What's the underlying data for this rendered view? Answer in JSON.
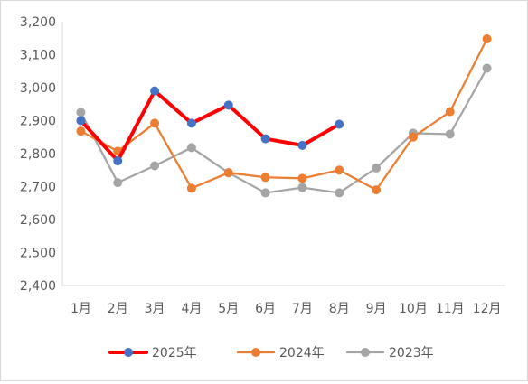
{
  "chart_data": {
    "type": "line",
    "title": "",
    "xlabel": "",
    "ylabel": "",
    "categories": [
      "1月",
      "2月",
      "3月",
      "4月",
      "5月",
      "6月",
      "7月",
      "8月",
      "9月",
      "10月",
      "11月",
      "12月"
    ],
    "ylim": [
      2400,
      3200
    ],
    "yticks": [
      "2,400",
      "2,500",
      "2,600",
      "2,700",
      "2,800",
      "2,900",
      "3,000",
      "3,100",
      "3,200"
    ],
    "grid": false,
    "legend_position": "bottom",
    "series": [
      {
        "name": "2025年",
        "line_color": "#ff0000",
        "marker_color": "#4472c4",
        "values": [
          2900,
          2778,
          2990,
          2892,
          2947,
          2845,
          2825,
          2889,
          null,
          null,
          null,
          null
        ]
      },
      {
        "name": "2024年",
        "line_color": "#ed7d31",
        "marker_color": "#ed7d31",
        "values": [
          2868,
          2807,
          2892,
          2695,
          2742,
          2728,
          2725,
          2750,
          2690,
          2850,
          2927,
          3148
        ]
      },
      {
        "name": "2023年",
        "line_color": "#a5a5a5",
        "marker_color": "#a5a5a5",
        "values": [
          2925,
          2712,
          2763,
          2818,
          2742,
          2681,
          2697,
          2681,
          2756,
          2862,
          2859,
          3059
        ]
      }
    ]
  }
}
